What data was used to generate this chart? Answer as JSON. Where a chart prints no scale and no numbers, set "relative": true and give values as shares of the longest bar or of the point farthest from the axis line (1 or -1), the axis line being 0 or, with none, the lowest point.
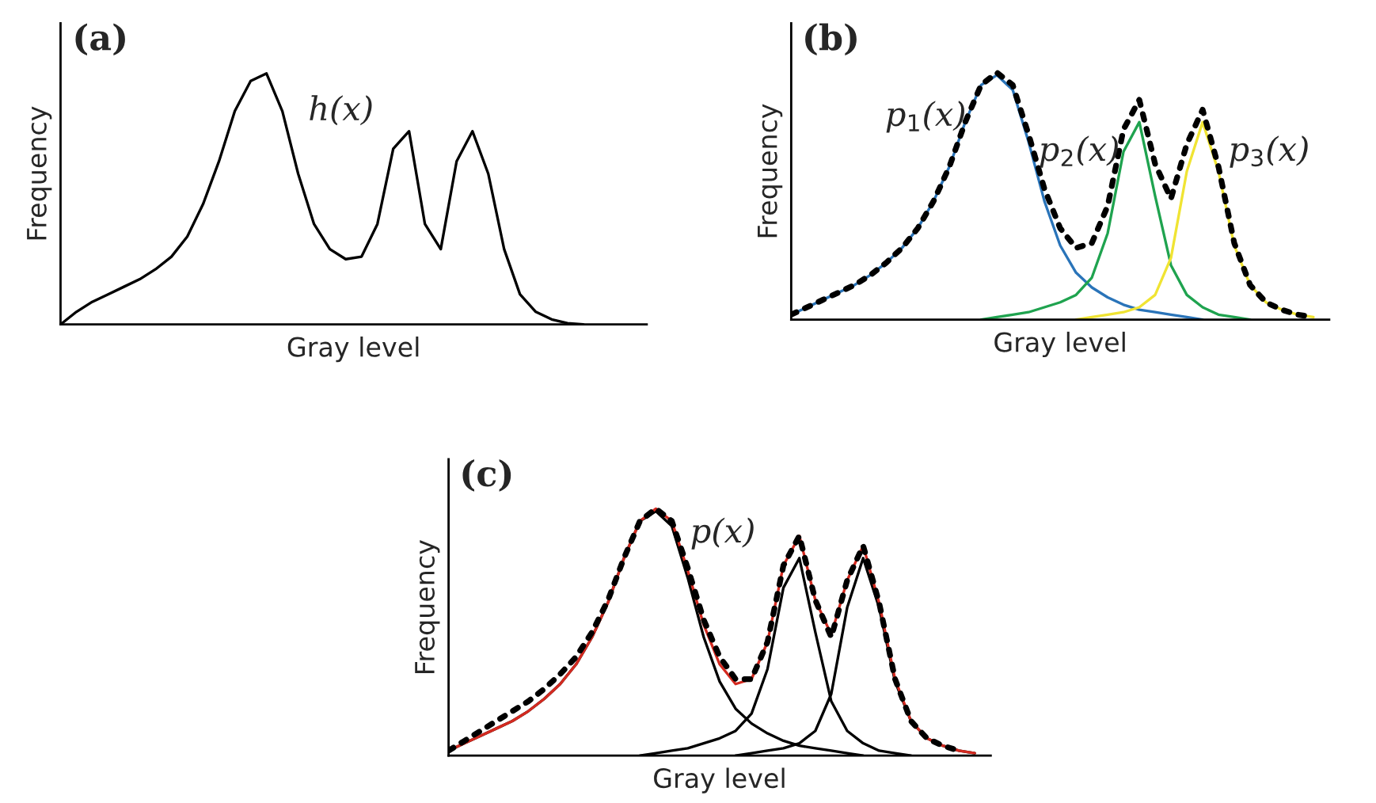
{
  "chart_data": [
    {
      "type": "line",
      "title": "(a)",
      "xlabel": "Gray level",
      "ylabel": "Frequency",
      "relative": true,
      "legend": false,
      "grid": false,
      "categories": [
        null,
        null,
        null,
        null,
        null,
        null,
        null,
        null,
        null,
        null,
        null,
        null,
        null,
        null,
        null,
        null,
        null,
        null,
        null,
        null,
        null,
        null,
        null,
        null,
        null,
        null,
        null,
        null,
        null,
        null,
        null,
        null,
        null,
        null,
        null,
        null,
        null,
        null
      ],
      "series": [
        {
          "name": "h(x)",
          "color": "#000000",
          "line_style": "solid",
          "values": [
            0,
            0.05,
            0.09,
            0.12,
            0.15,
            0.18,
            0.22,
            0.27,
            0.35,
            0.48,
            0.65,
            0.85,
            0.97,
            1.0,
            0.85,
            0.6,
            0.4,
            0.3,
            0.26,
            0.27,
            0.4,
            0.7,
            0.77,
            0.4,
            0.3,
            0.65,
            0.77,
            0.6,
            0.3,
            0.12,
            0.05,
            0.02,
            0.005,
            0,
            null,
            null,
            null,
            null
          ]
        }
      ]
    },
    {
      "type": "line",
      "title": "(b)",
      "xlabel": "Gray level",
      "ylabel": "Frequency",
      "relative": true,
      "legend": false,
      "grid": false,
      "categories": [
        null,
        null,
        null,
        null,
        null,
        null,
        null,
        null,
        null,
        null,
        null,
        null,
        null,
        null,
        null,
        null,
        null,
        null,
        null,
        null,
        null,
        null,
        null,
        null,
        null,
        null,
        null,
        null,
        null,
        null,
        null,
        null,
        null,
        null,
        null
      ],
      "series": [
        {
          "name": "p$_{1}$(x)",
          "color": "#2a74b9",
          "line_style": "solid",
          "values": [
            0.02,
            0.05,
            0.08,
            0.11,
            0.14,
            0.18,
            0.23,
            0.29,
            0.37,
            0.48,
            0.62,
            0.8,
            0.95,
            0.99,
            0.93,
            0.72,
            0.48,
            0.3,
            0.19,
            0.13,
            0.09,
            0.06,
            0.04,
            0.03,
            0.02,
            0.01,
            0,
            null,
            null,
            null,
            null,
            null,
            null,
            null,
            null
          ]
        },
        {
          "name": "p$_{2}$(x)",
          "color": "#1fa34f",
          "line_style": "solid",
          "values": [
            null,
            null,
            null,
            null,
            null,
            null,
            null,
            null,
            null,
            null,
            null,
            null,
            0,
            0.01,
            0.02,
            0.03,
            0.05,
            0.07,
            0.1,
            0.17,
            0.35,
            0.68,
            0.8,
            0.5,
            0.22,
            0.1,
            0.05,
            0.02,
            0.01,
            0,
            null,
            null,
            null,
            null,
            null
          ]
        },
        {
          "name": "p$_{3}$(x)",
          "color": "#f0e433",
          "line_style": "solid",
          "values": [
            null,
            null,
            null,
            null,
            null,
            null,
            null,
            null,
            null,
            null,
            null,
            null,
            null,
            null,
            null,
            null,
            null,
            null,
            0,
            0.01,
            0.02,
            0.03,
            0.05,
            0.1,
            0.25,
            0.6,
            0.8,
            0.6,
            0.3,
            0.14,
            0.07,
            0.04,
            0.02,
            0.01,
            null
          ]
        },
        {
          "color": "#000000",
          "line_style": "dotted",
          "values": [
            0.02,
            0.05,
            0.08,
            0.11,
            0.14,
            0.18,
            0.23,
            0.29,
            0.37,
            0.48,
            0.62,
            0.8,
            0.95,
            1.0,
            0.95,
            0.75,
            0.53,
            0.37,
            0.29,
            0.31,
            0.46,
            0.77,
            0.89,
            0.63,
            0.49,
            0.71,
            0.85,
            0.62,
            0.31,
            0.14,
            0.07,
            0.04,
            0.02,
            0.01,
            null
          ]
        }
      ]
    },
    {
      "type": "line",
      "title": "(c)",
      "xlabel": "Gray level",
      "ylabel": "Frequency",
      "relative": true,
      "legend": false,
      "grid": false,
      "categories": [
        null,
        null,
        null,
        null,
        null,
        null,
        null,
        null,
        null,
        null,
        null,
        null,
        null,
        null,
        null,
        null,
        null,
        null,
        null,
        null,
        null,
        null,
        null,
        null,
        null,
        null,
        null,
        null,
        null,
        null,
        null,
        null,
        null,
        null,
        null
      ],
      "series": [
        {
          "color": "#000000",
          "line_style": "solid",
          "values": [
            0.02,
            0.05,
            0.08,
            0.11,
            0.14,
            0.18,
            0.23,
            0.29,
            0.37,
            0.48,
            0.62,
            0.8,
            0.95,
            0.99,
            0.93,
            0.72,
            0.48,
            0.3,
            0.19,
            0.13,
            0.09,
            0.06,
            0.04,
            0.03,
            0.02,
            0.01,
            0,
            null,
            null,
            null,
            null,
            null,
            null,
            null,
            null
          ]
        },
        {
          "color": "#000000",
          "line_style": "solid",
          "values": [
            null,
            null,
            null,
            null,
            null,
            null,
            null,
            null,
            null,
            null,
            null,
            null,
            0,
            0.01,
            0.02,
            0.03,
            0.05,
            0.07,
            0.1,
            0.17,
            0.35,
            0.68,
            0.8,
            0.5,
            0.22,
            0.1,
            0.05,
            0.02,
            0.01,
            0,
            null,
            null,
            null,
            null,
            null
          ]
        },
        {
          "color": "#000000",
          "line_style": "solid",
          "values": [
            null,
            null,
            null,
            null,
            null,
            null,
            null,
            null,
            null,
            null,
            null,
            null,
            null,
            null,
            null,
            null,
            null,
            null,
            0,
            0.01,
            0.02,
            0.03,
            0.05,
            0.1,
            0.25,
            0.6,
            0.8,
            0.6,
            0.3,
            0.14,
            0.07,
            0.04,
            0.02,
            0.01,
            null
          ]
        },
        {
          "name": "p(x)",
          "color": "#d42a20",
          "line_style": "solid",
          "values": [
            0.02,
            0.05,
            0.08,
            0.11,
            0.14,
            0.18,
            0.23,
            0.29,
            0.37,
            0.48,
            0.62,
            0.8,
            0.95,
            1.0,
            0.95,
            0.75,
            0.53,
            0.37,
            0.29,
            0.31,
            0.46,
            0.77,
            0.89,
            0.63,
            0.49,
            0.71,
            0.85,
            0.62,
            0.31,
            0.14,
            0.07,
            0.04,
            0.02,
            0.01,
            null
          ]
        },
        {
          "color": "#000000",
          "line_style": "dotted",
          "values": [
            0.02,
            0.06,
            0.1,
            0.14,
            0.18,
            0.22,
            0.27,
            0.33,
            0.4,
            0.5,
            0.63,
            0.8,
            0.95,
            1.0,
            0.95,
            0.76,
            0.55,
            0.4,
            0.31,
            0.31,
            0.46,
            0.77,
            0.89,
            0.63,
            0.48,
            0.71,
            0.85,
            0.62,
            0.31,
            0.14,
            0.07,
            0.04,
            0.02,
            null,
            null
          ]
        }
      ]
    }
  ]
}
